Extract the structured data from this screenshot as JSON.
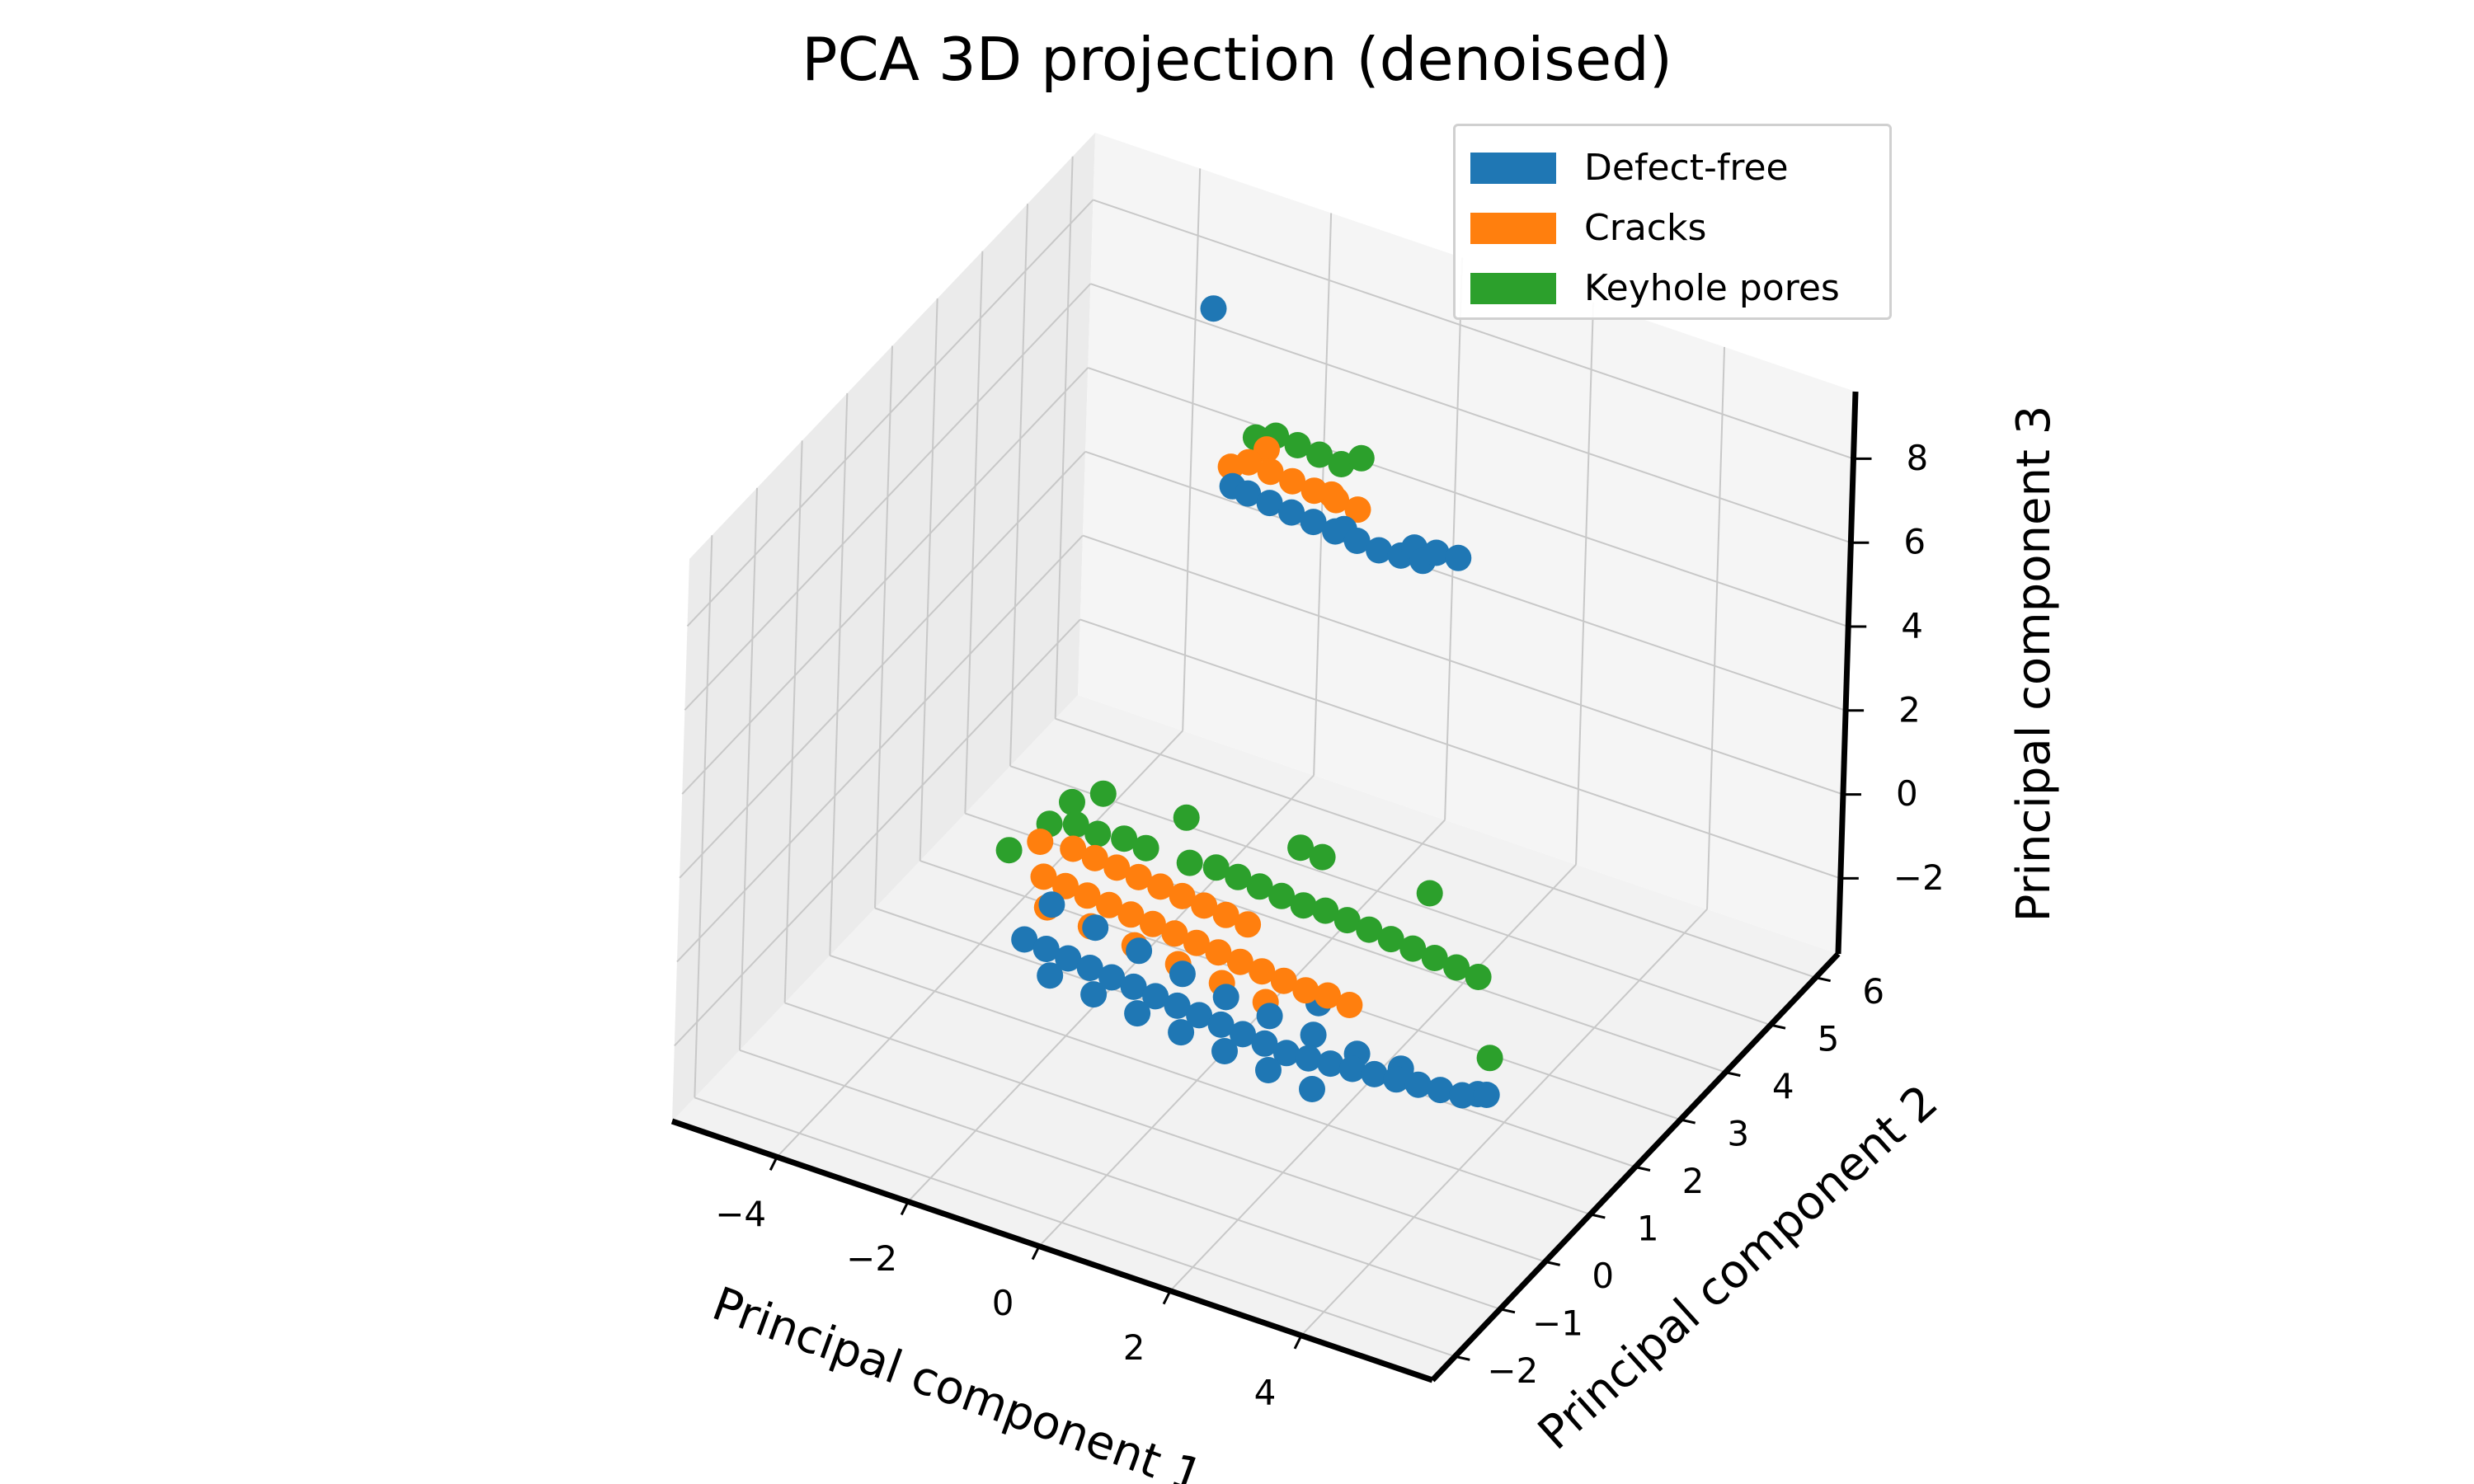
{
  "chart_data": {
    "type": "scatter",
    "title": "PCA 3D projection (denoised)",
    "xlabel": "Principal component 1",
    "ylabel": "Principal component 2",
    "zlabel": "Principal component 3",
    "xlim": [
      -5.6,
      6.0
    ],
    "ylim": [
      -2.5,
      6.5
    ],
    "zlim": [
      -3.8,
      9.6
    ],
    "x_ticks": [
      -4,
      -2,
      0,
      2,
      4
    ],
    "y_ticks": [
      -2,
      -1,
      0,
      1,
      2,
      3,
      4,
      5,
      6
    ],
    "z_ticks": [
      -2,
      0,
      2,
      4,
      6,
      8
    ],
    "x_tick_labels": [
      "−4",
      "−2",
      "0",
      "2",
      "4"
    ],
    "y_tick_labels": [
      "−2",
      "−1",
      "0",
      "1",
      "2",
      "3",
      "4",
      "5",
      "6"
    ],
    "z_tick_labels": [
      "−2",
      "0",
      "2",
      "4",
      "6",
      "8"
    ],
    "grid": true,
    "legend_position": "top-right",
    "series": [
      {
        "name": "Defect-free",
        "color": "#1f77b4",
        "points": [
          [
            -3.6,
            6.3,
            6.7
          ],
          [
            -2.6,
            5.7,
            3.5
          ],
          [
            -2.2,
            5.6,
            3.6
          ],
          [
            -1.8,
            5.5,
            3.7
          ],
          [
            -1.4,
            5.4,
            3.8
          ],
          [
            -1.0,
            5.3,
            3.9
          ],
          [
            -0.6,
            5.2,
            4.0
          ],
          [
            -0.2,
            5.1,
            4.1
          ],
          [
            0.2,
            5.0,
            4.3
          ],
          [
            0.6,
            4.9,
            4.5
          ],
          [
            0.8,
            4.9,
            4.8
          ],
          [
            1.2,
            4.8,
            5.0
          ],
          [
            0.4,
            5.0,
            4.6
          ],
          [
            -0.9,
            5.35,
            3.95
          ],
          [
            -2.9,
            5.8,
            3.4
          ],
          [
            -3.0,
            1.5,
            -2.6
          ],
          [
            -2.6,
            1.4,
            -2.5
          ],
          [
            -2.2,
            1.3,
            -2.4
          ],
          [
            -1.8,
            1.2,
            -2.3
          ],
          [
            -1.4,
            1.1,
            -2.2
          ],
          [
            -1.0,
            1.0,
            -2.1
          ],
          [
            -0.6,
            0.9,
            -2.0
          ],
          [
            -0.2,
            0.8,
            -1.9
          ],
          [
            0.2,
            0.7,
            -1.8
          ],
          [
            0.6,
            0.6,
            -1.7
          ],
          [
            1.0,
            0.5,
            -1.6
          ],
          [
            1.4,
            0.4,
            -1.5
          ],
          [
            1.8,
            0.3,
            -1.4
          ],
          [
            2.2,
            0.2,
            -1.2
          ],
          [
            2.6,
            0.1,
            -1.0
          ],
          [
            3.0,
            0.0,
            -0.8
          ],
          [
            3.4,
            -0.1,
            -0.6
          ],
          [
            3.8,
            -0.2,
            -0.4
          ],
          [
            4.2,
            -0.3,
            -0.2
          ],
          [
            4.6,
            -0.4,
            0.0
          ],
          [
            5.0,
            -0.5,
            0.2
          ],
          [
            5.3,
            -0.6,
            0.5
          ],
          [
            5.5,
            -0.7,
            0.7
          ],
          [
            -2.4,
            1.2,
            -2.8
          ],
          [
            -1.6,
            1.0,
            -2.6
          ],
          [
            -0.8,
            0.8,
            -2.4
          ],
          [
            0.0,
            0.6,
            -2.2
          ],
          [
            0.8,
            0.4,
            -2.0
          ],
          [
            1.6,
            0.2,
            -1.8
          ],
          [
            2.4,
            0.0,
            -1.6
          ],
          [
            -2.0,
            1.6,
            -1.9
          ],
          [
            -1.2,
            1.4,
            -1.8
          ],
          [
            -0.4,
            1.2,
            -1.7
          ],
          [
            0.4,
            1.0,
            -1.6
          ],
          [
            1.2,
            0.8,
            -1.4
          ],
          [
            2.0,
            0.6,
            -1.2
          ],
          [
            2.8,
            0.4,
            -1.0
          ],
          [
            3.6,
            0.2,
            -0.7
          ],
          [
            -2.8,
            1.8,
            -2.0
          ],
          [
            1.8,
            1.0,
            -1.0
          ]
        ]
      },
      {
        "name": "Cracks",
        "color": "#ff7f0e",
        "points": [
          [
            -2.8,
            6.0,
            3.8
          ],
          [
            -2.4,
            5.9,
            3.9
          ],
          [
            -2.0,
            5.8,
            4.0
          ],
          [
            -1.6,
            5.7,
            4.1
          ],
          [
            -1.2,
            5.6,
            4.2
          ],
          [
            -0.8,
            5.5,
            4.3
          ],
          [
            -2.6,
            6.1,
            4.1
          ],
          [
            -3.0,
            5.9,
            3.7
          ],
          [
            -1.4,
            5.8,
            4.0
          ],
          [
            -3.2,
            2.2,
            -2.0
          ],
          [
            -2.8,
            2.1,
            -1.9
          ],
          [
            -2.4,
            2.0,
            -1.8
          ],
          [
            -2.0,
            1.9,
            -1.7
          ],
          [
            -1.6,
            1.8,
            -1.6
          ],
          [
            -1.2,
            1.7,
            -1.5
          ],
          [
            -0.8,
            1.6,
            -1.4
          ],
          [
            -0.4,
            1.5,
            -1.3
          ],
          [
            0.0,
            1.4,
            -1.2
          ],
          [
            0.4,
            1.3,
            -1.1
          ],
          [
            0.8,
            1.2,
            -1.0
          ],
          [
            1.2,
            1.1,
            -0.9
          ],
          [
            1.6,
            1.0,
            -0.8
          ],
          [
            2.0,
            0.9,
            -0.6
          ],
          [
            2.4,
            0.8,
            -0.5
          ],
          [
            -3.4,
            2.4,
            -1.5
          ],
          [
            -2.9,
            2.4,
            -1.4
          ],
          [
            -2.5,
            2.3,
            -1.3
          ],
          [
            -2.1,
            2.2,
            -1.2
          ],
          [
            -1.7,
            2.1,
            -1.1
          ],
          [
            -1.3,
            2.0,
            -1.0
          ],
          [
            -0.9,
            1.9,
            -0.9
          ],
          [
            -0.5,
            1.8,
            -0.8
          ],
          [
            -0.1,
            1.7,
            -0.7
          ],
          [
            0.3,
            1.6,
            -0.6
          ],
          [
            -3.0,
            2.0,
            -2.4
          ],
          [
            -2.2,
            1.8,
            -2.2
          ],
          [
            -1.4,
            1.6,
            -2.0
          ],
          [
            -0.6,
            1.4,
            -1.8
          ],
          [
            0.2,
            1.2,
            -1.6
          ],
          [
            1.0,
            1.0,
            -1.4
          ]
        ]
      },
      {
        "name": "Keyhole pores",
        "color": "#2ca02c",
        "points": [
          [
            -2.6,
            6.3,
            4.2
          ],
          [
            -2.2,
            6.2,
            4.3
          ],
          [
            -1.8,
            6.1,
            4.4
          ],
          [
            -1.4,
            6.0,
            4.5
          ],
          [
            -1.1,
            6.0,
            4.8
          ],
          [
            -2.9,
            6.3,
            4.0
          ],
          [
            -3.4,
            2.6,
            -1.3
          ],
          [
            -3.0,
            2.6,
            -1.1
          ],
          [
            -2.6,
            2.5,
            -1.0
          ],
          [
            -2.2,
            2.5,
            -0.9
          ],
          [
            -1.8,
            2.4,
            -0.8
          ],
          [
            -1.0,
            2.2,
            -0.5
          ],
          [
            -0.6,
            2.2,
            -0.4
          ],
          [
            -0.2,
            2.1,
            -0.3
          ],
          [
            0.2,
            2.0,
            -0.2
          ],
          [
            0.6,
            1.9,
            -0.1
          ],
          [
            1.0,
            1.8,
            0.0
          ],
          [
            1.4,
            1.7,
            0.2
          ],
          [
            1.8,
            1.6,
            0.3
          ],
          [
            2.2,
            1.5,
            0.4
          ],
          [
            2.6,
            1.4,
            0.5
          ],
          [
            3.0,
            1.3,
            0.6
          ],
          [
            3.4,
            1.2,
            0.7
          ],
          [
            3.8,
            1.1,
            0.8
          ],
          [
            4.2,
            1.0,
            0.9
          ],
          [
            -3.2,
            2.8,
            -0.9
          ],
          [
            -2.8,
            2.9,
            -0.6
          ],
          [
            0.6,
            2.3,
            0.6
          ],
          [
            1.0,
            2.2,
            0.7
          ],
          [
            2.9,
            1.8,
            1.3
          ],
          [
            -3.8,
            2.3,
            -1.8
          ],
          [
            -1.4,
            2.7,
            -0.2
          ],
          [
            5.4,
            -0.5,
            1.3
          ]
        ]
      }
    ]
  }
}
